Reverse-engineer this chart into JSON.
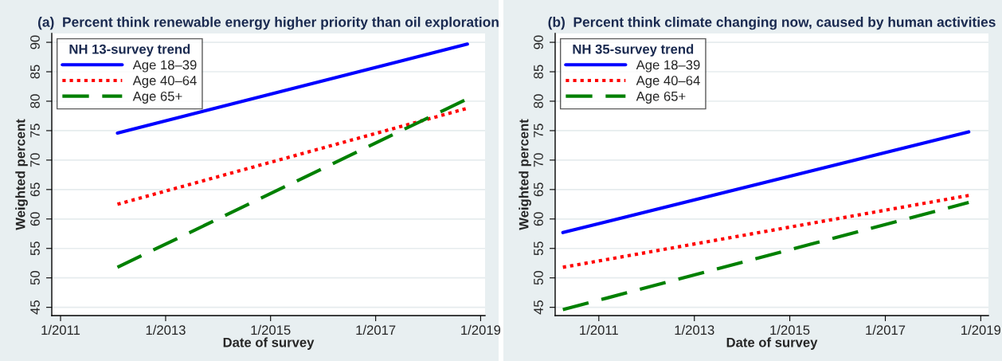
{
  "chart_data": [
    {
      "type": "line",
      "title": "(a)  Percent think renewable energy higher priority than oil exploration",
      "xlabel": "Date of survey",
      "ylabel": "Weighted percent",
      "legend_title": "NH 13-survey trend",
      "legend": "top left",
      "grid": "y",
      "xlim": [
        "2010-11",
        "2019-02"
      ],
      "ylim": [
        43.6,
        91.5
      ],
      "xticks": [
        {
          "value": "2011-01",
          "label": "1/2011"
        },
        {
          "value": "2013-01",
          "label": "1/2013"
        },
        {
          "value": "2015-01",
          "label": "1/2015"
        },
        {
          "value": "2017-01",
          "label": "1/2017"
        },
        {
          "value": "2019-01",
          "label": "1/2019"
        }
      ],
      "yticks": [
        45,
        50,
        55,
        60,
        65,
        70,
        75,
        80,
        85,
        90
      ],
      "series": [
        {
          "name": "Age 18–39",
          "color": "#0000ff",
          "line_style": "solid",
          "x": [
            "2012-02",
            "2018-10"
          ],
          "values": [
            74.6,
            89.7
          ]
        },
        {
          "name": "Age 40–64",
          "color": "#ff0000",
          "line_style": "dotted",
          "x": [
            "2012-02",
            "2018-10"
          ],
          "values": [
            62.5,
            78.8
          ]
        },
        {
          "name": "Age 65+",
          "color": "#008000",
          "line_style": "dashed",
          "x": [
            "2012-02",
            "2018-10"
          ],
          "values": [
            51.8,
            80.4
          ]
        }
      ]
    },
    {
      "type": "line",
      "title": "(b)  Percent think climate changing now, caused by human activities",
      "xlabel": "Date of survey",
      "ylabel": "Weighted percent",
      "legend_title": "NH 35-survey trend",
      "legend": "top left",
      "grid": "y",
      "xlim": [
        "2010-02",
        "2019-03"
      ],
      "ylim": [
        43.6,
        91.5
      ],
      "xticks": [
        {
          "value": "2011-01",
          "label": "1/2011"
        },
        {
          "value": "2013-01",
          "label": "1/2013"
        },
        {
          "value": "2015-01",
          "label": "1/2015"
        },
        {
          "value": "2017-01",
          "label": "1/2017"
        },
        {
          "value": "2019-01",
          "label": "1/2019"
        }
      ],
      "yticks": [
        45,
        50,
        55,
        60,
        65,
        70,
        75,
        80,
        85,
        90
      ],
      "series": [
        {
          "name": "Age 18–39",
          "color": "#0000ff",
          "line_style": "solid",
          "x": [
            "2010-04",
            "2018-10"
          ],
          "values": [
            57.7,
            74.8
          ]
        },
        {
          "name": "Age 40–64",
          "color": "#ff0000",
          "line_style": "dotted",
          "x": [
            "2010-04",
            "2018-10"
          ],
          "values": [
            51.8,
            64.0
          ]
        },
        {
          "name": "Age 65+",
          "color": "#008000",
          "line_style": "dashed",
          "x": [
            "2010-04",
            "2018-10"
          ],
          "values": [
            44.6,
            62.8
          ]
        }
      ]
    }
  ]
}
